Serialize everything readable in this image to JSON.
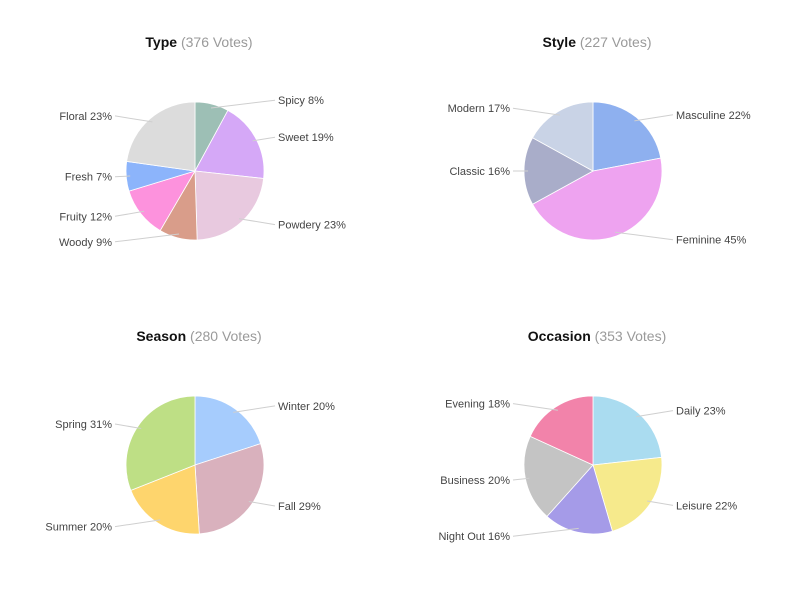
{
  "chart_data": [
    {
      "type": "pie",
      "title": "Type",
      "subtitle": "(376 Votes)",
      "slices": [
        {
          "label": "Spicy",
          "value": 8,
          "display": "8%",
          "color": "#9dbfb5"
        },
        {
          "label": "Sweet",
          "value": 19,
          "display": "19%",
          "color": "#d5a8f7"
        },
        {
          "label": "Powdery",
          "value": 23,
          "display": "23%",
          "color": "#e8c9df"
        },
        {
          "label": "Woody",
          "value": 9,
          "display": "9%",
          "color": "#d99d8a"
        },
        {
          "label": "Fruity",
          "value": 12,
          "display": "12%",
          "color": "#fd92dd"
        },
        {
          "label": "Fresh",
          "value": 7,
          "display": "7%",
          "color": "#8cb4fb"
        },
        {
          "label": "Floral",
          "value": 23,
          "display": "23%",
          "color": "#dcdcdc"
        }
      ]
    },
    {
      "type": "pie",
      "title": "Style",
      "subtitle": "(227 Votes)",
      "slices": [
        {
          "label": "Masculine",
          "value": 22,
          "display": "22%",
          "color": "#8eb0ef"
        },
        {
          "label": "Feminine",
          "value": 45,
          "display": "45%",
          "color": "#eea3f0"
        },
        {
          "label": "Classic",
          "value": 16,
          "display": "16%",
          "color": "#a9adc9"
        },
        {
          "label": "Modern",
          "value": 17,
          "display": "17%",
          "color": "#c9d3e6"
        }
      ]
    },
    {
      "type": "pie",
      "title": "Season",
      "subtitle": "(280 Votes)",
      "slices": [
        {
          "label": "Winter",
          "value": 20,
          "display": "20%",
          "color": "#a6ccfd"
        },
        {
          "label": "Fall",
          "value": 29,
          "display": "29%",
          "color": "#d9b1bd"
        },
        {
          "label": "Summer",
          "value": 20,
          "display": "20%",
          "color": "#fed56d"
        },
        {
          "label": "Spring",
          "value": 31,
          "display": "31%",
          "color": "#bedf85"
        }
      ]
    },
    {
      "type": "pie",
      "title": "Occasion",
      "subtitle": "(353 Votes)",
      "slices": [
        {
          "label": "Daily",
          "value": 23,
          "display": "23%",
          "color": "#aadcf0"
        },
        {
          "label": "Leisure",
          "value": 22,
          "display": "22%",
          "color": "#f6ea8c"
        },
        {
          "label": "Night Out",
          "value": 16,
          "display": "16%",
          "color": "#a59be8"
        },
        {
          "label": "Business",
          "value": 20,
          "display": "20%",
          "color": "#c4c4c4"
        },
        {
          "label": "Evening",
          "value": 18,
          "display": "18%",
          "color": "#f283aa"
        }
      ]
    }
  ]
}
